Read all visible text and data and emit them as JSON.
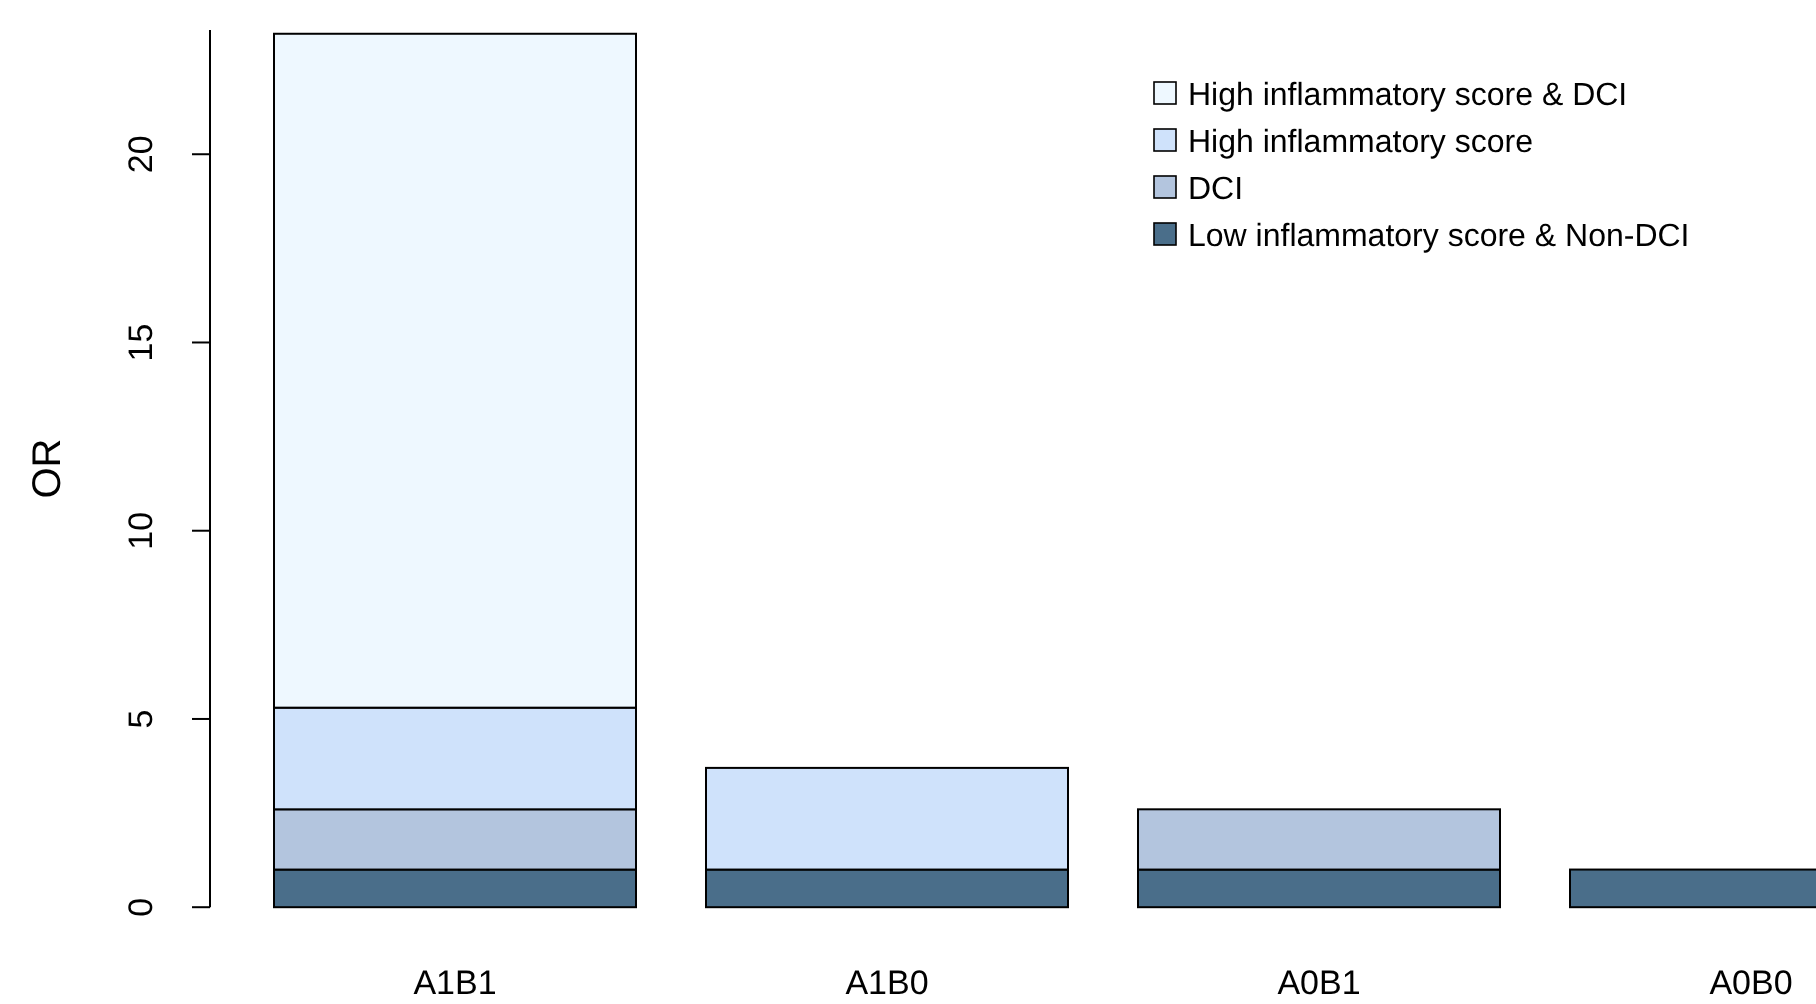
{
  "chart_data": {
    "type": "bar",
    "stacked": true,
    "ylabel": "OR",
    "categories": [
      "A1B1",
      "A1B0",
      "A0B1",
      "A0B0"
    ],
    "series": [
      {
        "name": "Low inflammatory score & Non-DCI",
        "color": "#4a6e8a",
        "values": [
          1,
          1,
          1,
          1
        ]
      },
      {
        "name": "DCI",
        "color": "#b3c5de",
        "values": [
          1.6,
          null,
          1.6,
          null
        ]
      },
      {
        "name": "High inflammatory score",
        "color": "#cfe2fb",
        "values": [
          2.7,
          2.7,
          null,
          null
        ]
      },
      {
        "name": "High inflammatory score & DCI",
        "color": "#eef8ff",
        "values": [
          17.9,
          null,
          null,
          null
        ]
      }
    ],
    "ylim": [
      0,
      23.3
    ],
    "yticks": [
      0,
      5,
      10,
      15,
      20
    ],
    "legend": "top right"
  }
}
